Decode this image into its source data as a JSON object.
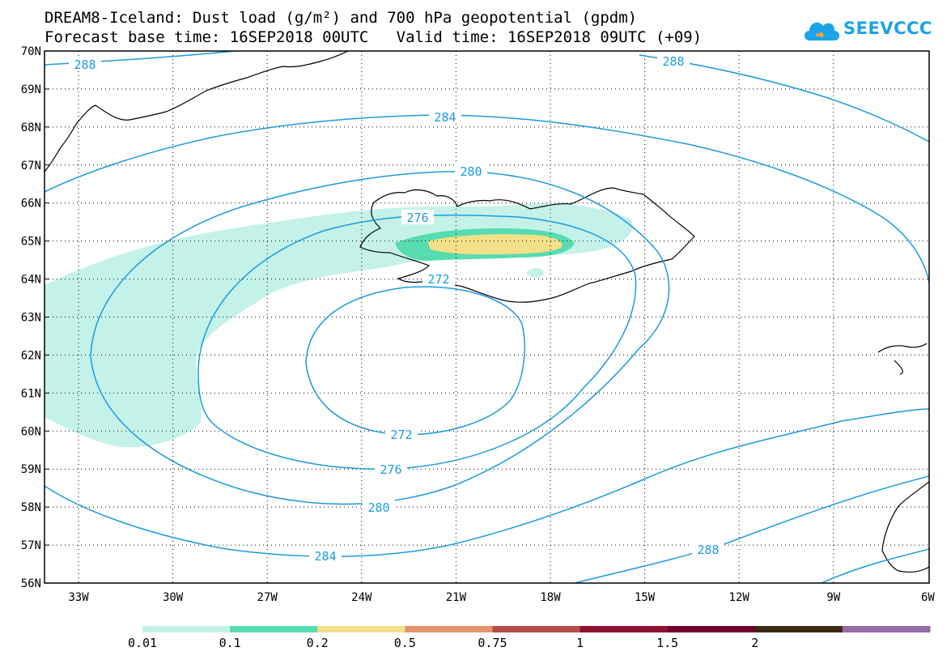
{
  "header": {
    "line1": "DREAM8-Iceland: Dust load (g/m²) and 700 hPa geopotential (gpdm)",
    "line2": "Forecast base time: 16SEP2018 00UTC   Valid time: 16SEP2018 09UTC (+09)"
  },
  "logo": {
    "text": "SEEVCCC",
    "icon": "cloud-icon"
  },
  "map": {
    "lat_labels": [
      "70N",
      "69N",
      "68N",
      "67N",
      "66N",
      "65N",
      "64N",
      "63N",
      "62N",
      "61N",
      "60N",
      "59N",
      "58N",
      "57N",
      "56N"
    ],
    "lon_labels": [
      "33W",
      "30W",
      "27W",
      "24W",
      "21W",
      "18W",
      "15W",
      "12W",
      "9W",
      "6W"
    ],
    "contour_labels": {
      "c288_a": "288",
      "c288_b": "288",
      "c288_c": "288",
      "c284_top": "284",
      "c284_bot": "284",
      "c280_top": "280",
      "c280_bot": "280",
      "c276_top": "276",
      "c276_bot": "276",
      "c272_top": "272",
      "c272_bot": "272"
    },
    "contour_color": "#1a9be0"
  },
  "colorbar": {
    "colors": [
      "#c4f2e9",
      "#56dcae",
      "#f4e08a",
      "#e3946e",
      "#b34f47",
      "#8e1232",
      "#70002c",
      "#3c2a12",
      "#9a6aa8"
    ],
    "labels": [
      "0.01",
      "0.1",
      "0.2",
      "0.5",
      "0.75",
      "1",
      "1.5",
      "2"
    ]
  }
}
